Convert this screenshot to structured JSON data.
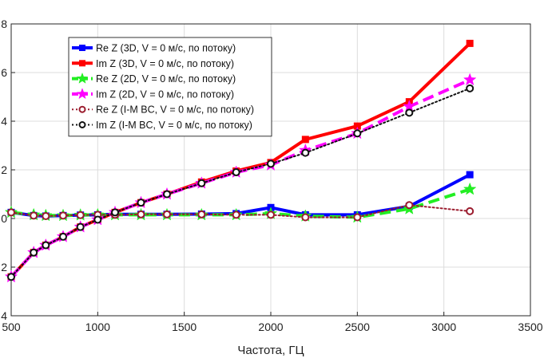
{
  "chart_data": {
    "type": "line",
    "xlabel": "Частота, ГЦ",
    "ylabel": "",
    "xlim": [
      500,
      3500
    ],
    "ylim": [
      -4,
      8
    ],
    "xticks": [
      500,
      1000,
      1500,
      2000,
      2500,
      3000,
      3500
    ],
    "yticks": [
      -4,
      -2,
      0,
      2,
      4,
      6,
      8
    ],
    "xtick_labels": [
      "500",
      "1000",
      "1500",
      "2000",
      "2500",
      "3000",
      "3500"
    ],
    "ytick_labels": [
      "4",
      "2",
      "0",
      "2",
      "4",
      "6",
      "8"
    ],
    "grid": true,
    "legend_position": "top-left",
    "series": [
      {
        "name": "Re Z (3D, V = 0 м/с, по потоку)",
        "color": "#0000ff",
        "dash": "solid",
        "marker": "square",
        "x": [
          500,
          630,
          700,
          800,
          900,
          1000,
          1100,
          1250,
          1400,
          1600,
          1800,
          2000,
          2200,
          2500,
          2800,
          3150
        ],
        "y": [
          0.25,
          0.12,
          0.1,
          0.12,
          0.14,
          0.15,
          0.17,
          0.17,
          0.17,
          0.18,
          0.2,
          0.45,
          0.15,
          0.15,
          0.5,
          1.8
        ]
      },
      {
        "name": "Im Z (3D, V = 0 м/с, по потоку)",
        "color": "#ff0000",
        "dash": "solid",
        "marker": "square",
        "x": [
          500,
          630,
          700,
          800,
          900,
          1000,
          1100,
          1250,
          1400,
          1600,
          1800,
          2000,
          2200,
          2500,
          2800,
          3150
        ],
        "y": [
          -2.4,
          -1.4,
          -1.1,
          -0.75,
          -0.35,
          -0.05,
          0.25,
          0.65,
          1.0,
          1.5,
          1.95,
          2.3,
          3.25,
          3.8,
          4.8,
          7.2
        ]
      },
      {
        "name": "Re Z (2D, V = 0 м/с, по потоку)",
        "color": "#22ee22",
        "dash": "dashed",
        "marker": "star",
        "x": [
          500,
          630,
          700,
          800,
          900,
          1000,
          1100,
          1250,
          1400,
          1600,
          1800,
          2000,
          2200,
          2500,
          2800,
          3150
        ],
        "y": [
          0.25,
          0.15,
          0.12,
          0.12,
          0.14,
          0.15,
          0.15,
          0.15,
          0.15,
          0.15,
          0.15,
          0.2,
          0.1,
          0.05,
          0.4,
          1.2
        ]
      },
      {
        "name": "Im Z (2D, V = 0 м/с, по потоку)",
        "color": "#ff00ff",
        "dash": "dashed",
        "marker": "star",
        "x": [
          500,
          630,
          700,
          800,
          900,
          1000,
          1100,
          1250,
          1400,
          1600,
          1800,
          2000,
          2200,
          2500,
          2800,
          3150
        ],
        "y": [
          -2.4,
          -1.4,
          -1.1,
          -0.75,
          -0.35,
          -0.05,
          0.25,
          0.65,
          1.0,
          1.45,
          1.9,
          2.2,
          2.8,
          3.5,
          4.6,
          5.7
        ]
      },
      {
        "name": "Re Z (I-M BC, V = 0 м/с, по потоку)",
        "color": "#9b1c2e",
        "dash": "dotted",
        "marker": "circle",
        "x": [
          500,
          630,
          700,
          800,
          900,
          1000,
          1100,
          1250,
          1400,
          1600,
          1800,
          2000,
          2200,
          2500,
          2800,
          3150
        ],
        "y": [
          0.25,
          0.12,
          0.1,
          0.12,
          0.14,
          0.15,
          0.15,
          0.17,
          0.17,
          0.17,
          0.15,
          0.15,
          0.05,
          0.05,
          0.55,
          0.3
        ]
      },
      {
        "name": "Im Z (I-M BC, V = 0 м/с, по потоку)",
        "color": "#111111",
        "dash": "dotted",
        "marker": "circle",
        "x": [
          500,
          630,
          700,
          800,
          900,
          1000,
          1100,
          1250,
          1400,
          1600,
          1800,
          2000,
          2200,
          2500,
          2800,
          3150
        ],
        "y": [
          -2.4,
          -1.4,
          -1.1,
          -0.75,
          -0.35,
          -0.05,
          0.25,
          0.65,
          1.0,
          1.45,
          1.9,
          2.25,
          2.7,
          3.5,
          4.35,
          5.35
        ]
      }
    ]
  }
}
